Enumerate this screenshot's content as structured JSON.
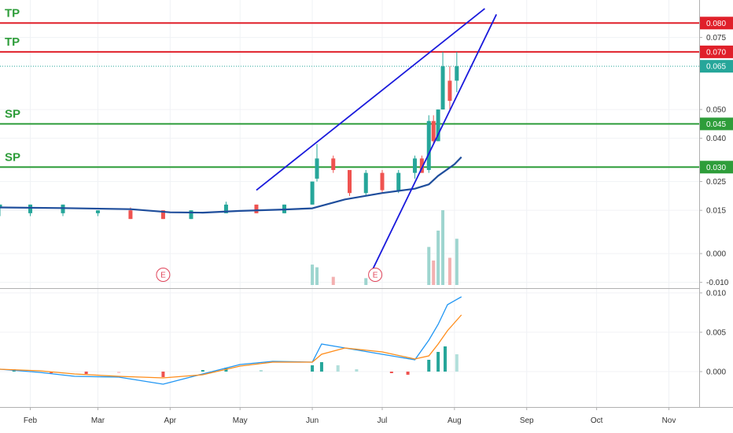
{
  "chart_data": [
    {
      "type": "candlestick",
      "title": "",
      "x_range": [
        "2020-01-19",
        "2020-11-14"
      ],
      "ylim": [
        -0.012,
        0.088
      ],
      "yticks": [
        "0.075",
        "0.050",
        "0.040",
        "0.025",
        "0.015",
        "0.000",
        "-0.010"
      ],
      "xticks": [
        "Feb",
        "Mar",
        "Apr",
        "May",
        "Jun",
        "Jul",
        "Aug",
        "Sep",
        "Oct",
        "Nov"
      ],
      "colors": {
        "up": "#26a69a",
        "down": "#ef5350",
        "ma": "#1f4e9c",
        "trendline": "#1a1adc",
        "resistance": "#e0202a",
        "support": "#2e9d3a",
        "last_price": "#26a69a"
      },
      "candles": [
        {
          "date": "2020-01-19",
          "open": 0.016,
          "high": 0.017,
          "low": 0.013,
          "close": 0.017
        },
        {
          "date": "2020-02-01",
          "open": 0.014,
          "high": 0.017,
          "low": 0.013,
          "close": 0.017
        },
        {
          "date": "2020-02-15",
          "open": 0.014,
          "high": 0.017,
          "low": 0.013,
          "close": 0.017
        },
        {
          "date": "2020-03-01",
          "open": 0.014,
          "high": 0.015,
          "low": 0.013,
          "close": 0.015
        },
        {
          "date": "2020-03-15",
          "open": 0.015,
          "high": 0.016,
          "low": 0.012,
          "close": 0.012
        },
        {
          "date": "2020-03-29",
          "open": 0.015,
          "high": 0.015,
          "low": 0.012,
          "close": 0.012
        },
        {
          "date": "2020-04-10",
          "open": 0.012,
          "high": 0.015,
          "low": 0.012,
          "close": 0.015
        },
        {
          "date": "2020-04-25",
          "open": 0.014,
          "high": 0.018,
          "low": 0.014,
          "close": 0.017
        },
        {
          "date": "2020-05-08",
          "open": 0.017,
          "high": 0.017,
          "low": 0.014,
          "close": 0.014
        },
        {
          "date": "2020-05-20",
          "open": 0.014,
          "high": 0.017,
          "low": 0.014,
          "close": 0.017
        },
        {
          "date": "2020-06-01",
          "open": 0.017,
          "high": 0.025,
          "low": 0.017,
          "close": 0.025
        },
        {
          "date": "2020-06-03",
          "open": 0.026,
          "high": 0.038,
          "low": 0.025,
          "close": 0.033
        },
        {
          "date": "2020-06-10",
          "open": 0.033,
          "high": 0.034,
          "low": 0.028,
          "close": 0.029
        },
        {
          "date": "2020-06-17",
          "open": 0.029,
          "high": 0.029,
          "low": 0.02,
          "close": 0.021
        },
        {
          "date": "2020-06-24",
          "open": 0.021,
          "high": 0.029,
          "low": 0.02,
          "close": 0.028
        },
        {
          "date": "2020-07-01",
          "open": 0.028,
          "high": 0.029,
          "low": 0.021,
          "close": 0.022
        },
        {
          "date": "2020-07-08",
          "open": 0.022,
          "high": 0.029,
          "low": 0.021,
          "close": 0.028
        },
        {
          "date": "2020-07-15",
          "open": 0.028,
          "high": 0.034,
          "low": 0.026,
          "close": 0.033
        },
        {
          "date": "2020-07-18",
          "open": 0.033,
          "high": 0.034,
          "low": 0.028,
          "close": 0.028
        },
        {
          "date": "2020-07-21",
          "open": 0.029,
          "high": 0.048,
          "low": 0.028,
          "close": 0.046
        },
        {
          "date": "2020-07-23",
          "open": 0.046,
          "high": 0.048,
          "low": 0.038,
          "close": 0.039
        },
        {
          "date": "2020-07-25",
          "open": 0.039,
          "high": 0.05,
          "low": 0.039,
          "close": 0.05
        },
        {
          "date": "2020-07-27",
          "open": 0.05,
          "high": 0.07,
          "low": 0.05,
          "close": 0.065
        },
        {
          "date": "2020-07-30",
          "open": 0.06,
          "high": 0.065,
          "low": 0.05,
          "close": 0.053
        },
        {
          "date": "2020-08-02",
          "open": 0.06,
          "high": 0.07,
          "low": 0.056,
          "close": 0.065
        }
      ],
      "ma_line": [
        {
          "date": "2020-01-19",
          "value": 0.016
        },
        {
          "date": "2020-02-15",
          "value": 0.0158
        },
        {
          "date": "2020-03-15",
          "value": 0.0154
        },
        {
          "date": "2020-04-01",
          "value": 0.0143
        },
        {
          "date": "2020-04-15",
          "value": 0.0142
        },
        {
          "date": "2020-05-01",
          "value": 0.0148
        },
        {
          "date": "2020-05-20",
          "value": 0.0153
        },
        {
          "date": "2020-06-01",
          "value": 0.0157
        },
        {
          "date": "2020-06-15",
          "value": 0.0188
        },
        {
          "date": "2020-07-01",
          "value": 0.021
        },
        {
          "date": "2020-07-15",
          "value": 0.0225
        },
        {
          "date": "2020-07-21",
          "value": 0.024
        },
        {
          "date": "2020-07-25",
          "value": 0.027
        },
        {
          "date": "2020-08-01",
          "value": 0.031
        },
        {
          "date": "2020-08-04",
          "value": 0.0335
        }
      ],
      "trendlines": [
        {
          "from": {
            "date": "2020-05-08",
            "value": 0.022
          },
          "to": {
            "date": "2020-08-14",
            "value": 0.085
          }
        },
        {
          "from": {
            "date": "2020-06-26",
            "value": -0.007
          },
          "to": {
            "date": "2020-08-19",
            "value": 0.083
          }
        }
      ],
      "levels": [
        {
          "value": 0.08,
          "price_tag": "0.080",
          "color": "#e0202a",
          "label": "TP"
        },
        {
          "value": 0.07,
          "price_tag": "0.070",
          "color": "#e0202a",
          "label": "TP"
        },
        {
          "value": 0.045,
          "price_tag": "0.045",
          "color": "#2e9d3a",
          "label": "SP"
        },
        {
          "value": 0.03,
          "price_tag": "0.030",
          "color": "#2e9d3a",
          "label": "SP"
        }
      ],
      "last_price": {
        "value": 0.065,
        "price_tag": "0.065"
      },
      "volume": [
        {
          "date": "2020-06-01",
          "value": 0.15,
          "up": true
        },
        {
          "date": "2020-06-03",
          "value": 0.13,
          "up": true
        },
        {
          "date": "2020-06-10",
          "value": 0.06,
          "up": false
        },
        {
          "date": "2020-06-24",
          "value": 0.05,
          "up": true
        },
        {
          "date": "2020-07-21",
          "value": 0.28,
          "up": true
        },
        {
          "date": "2020-07-23",
          "value": 0.18,
          "up": false
        },
        {
          "date": "2020-07-25",
          "value": 0.4,
          "up": true
        },
        {
          "date": "2020-07-27",
          "value": 0.55,
          "up": true
        },
        {
          "date": "2020-07-30",
          "value": 0.2,
          "up": false
        },
        {
          "date": "2020-08-02",
          "value": 0.34,
          "up": true
        }
      ],
      "events": [
        {
          "date": "2020-03-29",
          "label": "E"
        },
        {
          "date": "2020-06-28",
          "label": "E"
        }
      ]
    },
    {
      "type": "line",
      "title": "",
      "ylim": [
        -0.0045,
        0.0105
      ],
      "yticks": [
        "0.010",
        "0.005",
        "0.000"
      ],
      "colors": {
        "macd": "#2196f3",
        "signal": "#ff8c1a",
        "hist_up_strong": "#26a69a",
        "hist_up_weak": "#b2dfdb",
        "hist_down_strong": "#ef5350",
        "hist_down_weak": "#ffcdd2"
      },
      "series": [
        {
          "x": [
            "2020-01-19",
            "2020-02-05",
            "2020-02-20",
            "2020-03-10",
            "2020-03-29",
            "2020-04-15",
            "2020-05-01",
            "2020-05-15",
            "2020-06-01",
            "2020-06-05",
            "2020-06-15",
            "2020-07-01",
            "2020-07-15",
            "2020-07-21",
            "2020-07-25",
            "2020-07-29",
            "2020-08-04"
          ],
          "values": [
            0.0003,
            -0.0001,
            -0.0006,
            -0.0007,
            -0.0016,
            -0.0003,
            0.0009,
            0.0013,
            0.0012,
            0.0035,
            0.003,
            0.0022,
            0.0015,
            0.004,
            0.006,
            0.0085,
            0.0095
          ]
        },
        {
          "x": [
            "2020-01-19",
            "2020-02-05",
            "2020-02-20",
            "2020-03-10",
            "2020-03-29",
            "2020-04-15",
            "2020-05-01",
            "2020-05-15",
            "2020-06-01",
            "2020-06-05",
            "2020-06-15",
            "2020-07-01",
            "2020-07-15",
            "2020-07-21",
            "2020-07-25",
            "2020-07-29",
            "2020-08-04"
          ],
          "values": [
            0.0003,
            0.0001,
            -0.0003,
            -0.0006,
            -0.0008,
            -0.0004,
            0.0007,
            0.0012,
            0.0012,
            0.0022,
            0.003,
            0.0025,
            0.0016,
            0.002,
            0.0035,
            0.0052,
            0.0072
          ]
        }
      ],
      "histogram": [
        {
          "date": "2020-01-25",
          "value": 0.0003
        },
        {
          "date": "2020-02-10",
          "value": -0.0002
        },
        {
          "date": "2020-02-25",
          "value": -0.0003
        },
        {
          "date": "2020-03-10",
          "value": -0.0002
        },
        {
          "date": "2020-03-29",
          "value": -0.0007
        },
        {
          "date": "2020-04-15",
          "value": 0.0002
        },
        {
          "date": "2020-04-25",
          "value": 0.0005
        },
        {
          "date": "2020-05-10",
          "value": 0.0002
        },
        {
          "date": "2020-06-01",
          "value": 0.0008
        },
        {
          "date": "2020-06-05",
          "value": 0.0012
        },
        {
          "date": "2020-06-12",
          "value": 0.0008
        },
        {
          "date": "2020-06-20",
          "value": 0.0003
        },
        {
          "date": "2020-07-05",
          "value": -0.0002
        },
        {
          "date": "2020-07-12",
          "value": -0.0004
        },
        {
          "date": "2020-07-21",
          "value": 0.0015
        },
        {
          "date": "2020-07-25",
          "value": 0.0025
        },
        {
          "date": "2020-07-28",
          "value": 0.0032
        },
        {
          "date": "2020-08-02",
          "value": 0.0022
        }
      ]
    }
  ]
}
